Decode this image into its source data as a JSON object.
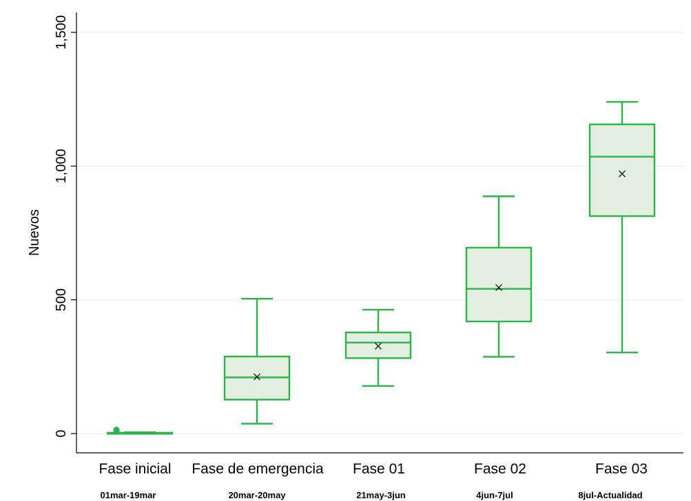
{
  "chart_data": {
    "type": "box",
    "title": "",
    "xlabel": "",
    "ylabel": "Nuevos",
    "ylim": [
      -70,
      1560
    ],
    "yticks": [
      0,
      500,
      1000,
      1500
    ],
    "ytick_labels": [
      "0",
      "500",
      "1,000",
      "1,500"
    ],
    "grid": true,
    "legend": "none",
    "colors": {
      "box_stroke": "#2db34a",
      "box_fill": "#e2efde",
      "grid": "#e6eeee",
      "axis": "#000000"
    },
    "categories": [
      "Fase inicial",
      "Fase de emergencia",
      "Fase 01",
      "Fase 02",
      "Fase 03"
    ],
    "date_ranges": [
      "01mar-19mar",
      "20mar-20may",
      "21may-3jun",
      "4jun-7jul",
      "8jul-Actualidad"
    ],
    "boxes": [
      {
        "category": "Fase inicial",
        "whisker_low": 0,
        "q1": 1,
        "median": 2,
        "q3": 3,
        "whisker_high": 5,
        "mean": 2,
        "outliers": [
          7,
          9,
          12,
          14
        ]
      },
      {
        "category": "Fase de emergencia",
        "whisker_low": 37,
        "q1": 127,
        "median": 210,
        "q3": 288,
        "whisker_high": 504,
        "mean": 212,
        "outliers": []
      },
      {
        "category": "Fase 01",
        "whisker_low": 178,
        "q1": 282,
        "median": 340,
        "q3": 378,
        "whisker_high": 463,
        "mean": 327,
        "outliers": []
      },
      {
        "category": "Fase 02",
        "whisker_low": 287,
        "q1": 419,
        "median": 541,
        "q3": 695,
        "whisker_high": 887,
        "mean": 546,
        "outliers": []
      },
      {
        "category": "Fase 03",
        "whisker_low": 303,
        "q1": 813,
        "median": 1035,
        "q3": 1156,
        "whisker_high": 1240,
        "mean": 971,
        "outliers": []
      }
    ]
  }
}
